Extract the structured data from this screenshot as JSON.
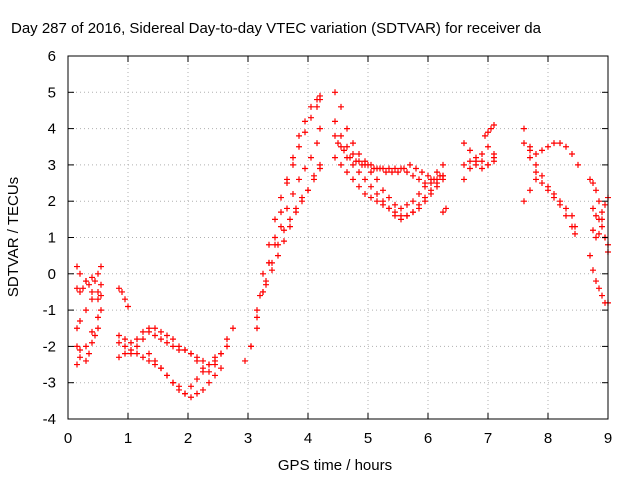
{
  "chart_data": {
    "type": "scatter",
    "title": "Day 287 of 2016, Sidereal Day-to-day VTEC variation (SDTVAR) for receiver da",
    "xlabel": "GPS time / hours",
    "ylabel": "SDTVAR / TECUs",
    "xlim": [
      0,
      9
    ],
    "ylim": [
      -4,
      6
    ],
    "xticks": [
      "0",
      "1",
      "2",
      "3",
      "4",
      "5",
      "6",
      "7",
      "8",
      "9"
    ],
    "yticks": [
      "-4",
      "-3",
      "-2",
      "-1",
      "0",
      "1",
      "2",
      "3",
      "4",
      "5",
      "6"
    ],
    "grid": true,
    "marker": "plus",
    "color": "#ff0000",
    "series": [
      {
        "x": [
          0.15,
          0.2,
          0.25,
          0.3,
          0.35,
          0.4,
          0.45,
          0.5,
          0.55
        ],
        "y": [
          -0.4,
          -0.5,
          -0.4,
          -0.2,
          -0.3,
          -0.1,
          -0.2,
          0.0,
          0.2
        ]
      },
      {
        "x": [
          0.15,
          0.2,
          0.3,
          0.4,
          0.5,
          0.55
        ],
        "y": [
          0.2,
          0.0,
          -0.2,
          -0.5,
          -0.7,
          -0.6
        ]
      },
      {
        "x": [
          0.15,
          0.2,
          0.3,
          0.4,
          0.5,
          0.55
        ],
        "y": [
          -1.5,
          -1.3,
          -1.0,
          -0.7,
          -0.5,
          -0.3
        ]
      },
      {
        "x": [
          0.15,
          0.2,
          0.3,
          0.4,
          0.5,
          0.55
        ],
        "y": [
          -2.0,
          -2.1,
          -2.0,
          -1.6,
          -1.2,
          -1.0
        ]
      },
      {
        "x": [
          0.15,
          0.2,
          0.3,
          0.35,
          0.4,
          0.45,
          0.5
        ],
        "y": [
          -2.5,
          -2.3,
          -2.4,
          -2.2,
          -1.9,
          -1.7,
          -1.5
        ]
      },
      {
        "x": [
          0.85,
          0.95,
          1.05,
          1.15,
          1.25,
          1.35,
          1.45,
          1.55,
          1.65,
          1.75,
          1.85,
          1.95,
          2.05,
          2.15,
          2.25,
          2.35,
          2.45,
          2.55,
          2.65,
          2.75
        ],
        "y": [
          -1.7,
          -1.8,
          -1.9,
          -1.8,
          -1.6,
          -1.5,
          -1.5,
          -1.6,
          -1.7,
          -1.8,
          -2.0,
          -2.1,
          -2.2,
          -2.4,
          -2.6,
          -2.7,
          -2.5,
          -2.2,
          -1.8,
          -1.5
        ]
      },
      {
        "x": [
          0.85,
          0.95,
          1.05,
          1.15,
          1.25,
          1.35,
          1.45,
          1.55,
          1.65,
          1.75,
          1.85,
          1.95,
          2.05,
          2.15,
          2.25,
          2.35,
          2.45,
          2.55,
          2.65
        ],
        "y": [
          -2.3,
          -2.2,
          -2.2,
          -2.0,
          -1.8,
          -1.6,
          -1.7,
          -1.8,
          -1.9,
          -2.0,
          -2.1,
          -2.1,
          -2.2,
          -2.3,
          -2.4,
          -2.5,
          -2.4,
          -2.2,
          -2.0
        ]
      },
      {
        "x": [
          0.85,
          0.95,
          1.05,
          1.15,
          1.25,
          1.35,
          1.45,
          1.55,
          1.65,
          1.75,
          1.85,
          1.95,
          2.05,
          2.15,
          2.25,
          2.35,
          2.45
        ],
        "y": [
          -1.9,
          -2.0,
          -2.1,
          -2.2,
          -2.3,
          -2.4,
          -2.5,
          -2.6,
          -2.8,
          -3.0,
          -3.2,
          -3.3,
          -3.1,
          -2.9,
          -2.7,
          -2.5,
          -2.3
        ]
      },
      {
        "x": [
          1.35,
          1.45,
          1.55,
          1.65,
          1.75,
          1.85,
          1.95,
          2.05,
          2.15,
          2.25,
          2.35,
          2.45,
          2.55
        ],
        "y": [
          -2.2,
          -2.4,
          -2.6,
          -2.8,
          -3.0,
          -3.1,
          -3.3,
          -3.4,
          -3.3,
          -3.2,
          -3.0,
          -2.8,
          -2.6
        ]
      },
      {
        "x": [
          0.85,
          0.9,
          0.95,
          1.0
        ],
        "y": [
          -0.4,
          -0.5,
          -0.7,
          -0.9
        ]
      },
      {
        "x": [
          2.95,
          3.05,
          3.15,
          3.25,
          3.35,
          3.45,
          3.55,
          3.65,
          3.75,
          3.85,
          3.95,
          4.05,
          4.15,
          4.2
        ],
        "y": [
          -2.4,
          -2.0,
          -1.0,
          0.0,
          0.8,
          1.5,
          2.1,
          2.6,
          3.0,
          3.5,
          3.9,
          4.3,
          4.6,
          4.8
        ]
      },
      {
        "x": [
          3.05,
          3.15,
          3.25,
          3.35,
          3.45,
          3.55,
          3.65,
          3.75,
          3.85,
          3.95,
          4.05,
          4.15,
          4.2
        ],
        "y": [
          -2.0,
          -1.5,
          -0.5,
          0.3,
          1.0,
          1.7,
          2.5,
          3.2,
          3.8,
          4.2,
          4.6,
          4.8,
          4.9
        ]
      },
      {
        "x": [
          3.15,
          3.25,
          3.35,
          3.45,
          3.55,
          3.65,
          3.75,
          3.85,
          3.95,
          4.05,
          4.15,
          4.2
        ],
        "y": [
          -1.2,
          -0.5,
          0.3,
          0.8,
          1.3,
          1.8,
          2.2,
          2.6,
          2.9,
          3.2,
          3.6,
          4.0
        ]
      },
      {
        "x": [
          3.2,
          3.3,
          3.4,
          3.5,
          3.6,
          3.7,
          3.8,
          3.9,
          4.0,
          4.1,
          4.2
        ],
        "y": [
          -0.6,
          -0.2,
          0.3,
          0.8,
          1.2,
          1.5,
          1.8,
          2.1,
          2.3,
          2.6,
          2.9
        ]
      },
      {
        "x": [
          3.3,
          3.4,
          3.5,
          3.6,
          3.7,
          3.8,
          3.9,
          4.0,
          4.1,
          4.2
        ],
        "y": [
          -0.3,
          0.1,
          0.5,
          0.9,
          1.3,
          1.7,
          2.0,
          2.3,
          2.7,
          3.0
        ]
      },
      {
        "x": [
          4.45,
          4.55,
          4.65,
          4.75,
          4.85,
          4.95,
          5.05,
          5.15,
          5.25,
          5.35,
          5.45,
          5.55,
          5.65,
          5.75,
          5.85,
          5.95,
          6.05,
          6.15,
          6.25
        ],
        "y": [
          5.0,
          4.6,
          4.0,
          3.6,
          3.3,
          3.1,
          3.0,
          2.9,
          2.9,
          2.9,
          2.9,
          2.9,
          2.8,
          2.7,
          2.6,
          2.5,
          2.5,
          2.6,
          2.7
        ]
      },
      {
        "x": [
          4.45,
          4.55,
          4.65,
          4.75,
          4.85,
          4.95,
          5.05,
          5.15,
          5.25,
          5.35,
          5.45,
          5.55,
          5.65,
          5.75,
          5.85,
          5.95,
          6.05,
          6.15,
          6.25
        ],
        "y": [
          4.2,
          3.8,
          3.5,
          3.3,
          3.1,
          3.0,
          2.8,
          2.6,
          2.3,
          2.1,
          1.9,
          1.8,
          1.9,
          2.0,
          2.2,
          2.4,
          2.6,
          2.8,
          3.0
        ]
      },
      {
        "x": [
          4.45,
          4.55,
          4.65,
          4.75,
          4.85,
          4.95,
          5.05,
          5.15,
          5.25,
          5.35,
          5.45,
          5.55,
          5.65,
          5.75,
          5.85,
          5.95,
          6.05,
          6.15,
          6.25
        ],
        "y": [
          3.8,
          3.5,
          3.2,
          3.0,
          2.8,
          2.6,
          2.4,
          2.2,
          2.0,
          1.8,
          1.6,
          1.5,
          1.6,
          1.7,
          1.9,
          2.1,
          2.3,
          2.5,
          2.7
        ]
      },
      {
        "x": [
          4.45,
          4.55,
          4.65,
          4.75,
          4.85,
          4.95,
          5.05,
          5.15,
          5.25,
          5.35,
          5.45,
          5.55,
          5.65,
          5.75,
          5.85,
          5.95,
          6.05,
          6.15,
          6.25
        ],
        "y": [
          3.2,
          3.0,
          2.8,
          2.6,
          2.4,
          2.2,
          2.1,
          2.0,
          1.9,
          1.8,
          1.7,
          1.6,
          1.6,
          1.7,
          1.8,
          2.0,
          2.2,
          2.4,
          2.6
        ]
      },
      {
        "x": [
          4.5,
          4.6,
          4.7,
          4.8,
          4.9,
          5.0,
          5.1,
          5.2,
          5.3,
          5.4,
          5.5,
          5.6,
          5.7,
          5.8,
          5.9,
          6.0,
          6.1,
          6.2
        ],
        "y": [
          3.6,
          3.4,
          3.2,
          3.1,
          3.0,
          3.0,
          2.9,
          2.9,
          2.8,
          2.8,
          2.8,
          2.9,
          3.0,
          2.9,
          2.8,
          2.7,
          2.6,
          2.7
        ]
      },
      {
        "x": [
          6.25,
          6.3
        ],
        "y": [
          1.7,
          1.8
        ]
      },
      {
        "x": [
          6.6,
          6.7,
          6.8,
          6.9,
          7.0,
          7.1
        ],
        "y": [
          3.6,
          3.4,
          3.2,
          3.1,
          3.0,
          3.2
        ]
      },
      {
        "x": [
          6.6,
          6.7,
          6.8,
          6.9,
          7.0,
          7.1
        ],
        "y": [
          2.6,
          2.9,
          3.1,
          3.3,
          3.5,
          3.3
        ]
      },
      {
        "x": [
          6.6,
          6.7,
          6.8,
          6.9,
          7.0,
          7.1
        ],
        "y": [
          3.0,
          3.1,
          3.0,
          2.9,
          3.0,
          3.1
        ]
      },
      {
        "x": [
          6.95,
          7.0,
          7.05,
          7.1
        ],
        "y": [
          3.8,
          3.9,
          4.0,
          4.1
        ]
      },
      {
        "x": [
          7.6,
          7.7,
          7.8,
          7.9,
          8.0,
          8.1,
          8.2,
          8.3,
          8.4,
          8.5
        ],
        "y": [
          4.0,
          3.5,
          3.3,
          3.4,
          3.5,
          3.6,
          3.6,
          3.5,
          3.3,
          3.0
        ]
      },
      {
        "x": [
          7.6,
          7.7,
          7.8,
          7.9,
          8.0,
          8.1,
          8.2,
          8.3,
          8.4,
          8.45
        ],
        "y": [
          3.6,
          3.2,
          2.8,
          2.5,
          2.3,
          2.1,
          1.9,
          1.6,
          1.3,
          1.1
        ]
      },
      {
        "x": [
          7.7,
          7.8,
          7.9,
          8.0,
          8.1,
          8.2,
          8.3,
          8.4,
          8.45
        ],
        "y": [
          3.4,
          3.0,
          2.7,
          2.4,
          2.2,
          2.0,
          1.8,
          1.6,
          1.3
        ]
      },
      {
        "x": [
          7.6,
          7.7,
          7.8
        ],
        "y": [
          2.0,
          2.3,
          2.6
        ]
      },
      {
        "x": [
          8.7,
          8.75,
          8.8,
          8.85,
          8.9,
          8.95,
          9.0
        ],
        "y": [
          2.6,
          2.5,
          2.3,
          2.0,
          1.5,
          1.0,
          0.6
        ]
      },
      {
        "x": [
          8.75,
          8.8,
          8.85,
          8.9,
          8.95,
          9.0
        ],
        "y": [
          1.8,
          1.6,
          1.5,
          1.7,
          1.9,
          2.1
        ]
      },
      {
        "x": [
          8.7,
          8.75,
          8.8,
          8.85,
          8.9,
          8.95,
          9.0
        ],
        "y": [
          0.5,
          0.1,
          -0.2,
          -0.4,
          -0.6,
          -0.8,
          -0.8
        ]
      },
      {
        "x": [
          8.75,
          8.8,
          8.85,
          8.9,
          8.95,
          9.0
        ],
        "y": [
          1.2,
          1.0,
          1.1,
          1.3,
          1.0,
          0.8
        ]
      }
    ]
  }
}
